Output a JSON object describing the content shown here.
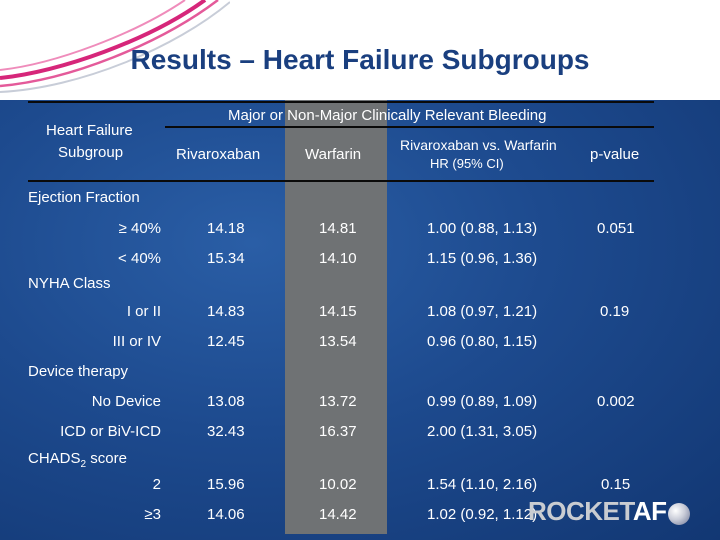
{
  "slide": {
    "title": "Results – Heart Failure Subgroups"
  },
  "table": {
    "col_subgroup": [
      "Heart Failure",
      "Subgroup"
    ],
    "group_header": "Major or Non-Major Clinically Relevant Bleeding",
    "col_rivaroxaban": "Rivaroxaban",
    "col_warfarin": "Warfarin",
    "col_hr": [
      "Rivaroxaban vs. Warfarin",
      "HR (95% CI)"
    ],
    "col_pvalue": "p-value",
    "sections": [
      {
        "name": "Ejection Fraction",
        "name_sub": "",
        "rows": [
          {
            "label": "≥ 40%",
            "riva": "14.18",
            "warf": "14.81",
            "hr": "1.00 (0.88, 1.13)",
            "p": "0.051"
          },
          {
            "label": "< 40%",
            "riva": "15.34",
            "warf": "14.10",
            "hr": "1.15 (0.96, 1.36)",
            "p": ""
          }
        ]
      },
      {
        "name": "NYHA Class",
        "name_sub": "",
        "rows": [
          {
            "label": "I or II",
            "riva": "14.83",
            "warf": "14.15",
            "hr": "1.08 (0.97, 1.21)",
            "p": "0.19"
          },
          {
            "label": "III or IV",
            "riva": "12.45",
            "warf": "13.54",
            "hr": "0.96 (0.80, 1.15)",
            "p": ""
          }
        ]
      },
      {
        "name": "Device therapy",
        "name_sub": "",
        "rows": [
          {
            "label": "No Device",
            "riva": "13.08",
            "warf": "13.72",
            "hr": "0.99 (0.89, 1.09)",
            "p": "0.002"
          },
          {
            "label": "ICD or BiV-ICD",
            "riva": "32.43",
            "warf": "16.37",
            "hr": "2.00 (1.31, 3.05)",
            "p": ""
          }
        ]
      },
      {
        "name": "CHADS",
        "name_sub": "2",
        "name_suffix": " score",
        "rows": [
          {
            "label": "2",
            "riva": "15.96",
            "warf": "10.02",
            "hr": "1.54 (1.10, 2.16)",
            "p": "0.15"
          },
          {
            "label": "≥3",
            "riva": "14.06",
            "warf": "14.42",
            "hr": "1.02 (0.92, 1.12)",
            "p": ""
          }
        ]
      }
    ]
  },
  "logo": {
    "part1": "ROCKET",
    "part2": "AF"
  },
  "colors": {
    "background": "#1d4a8e",
    "title": "#1a3f7f",
    "warfarin_column": "#6f7274",
    "swoosh": "#d6267a"
  }
}
